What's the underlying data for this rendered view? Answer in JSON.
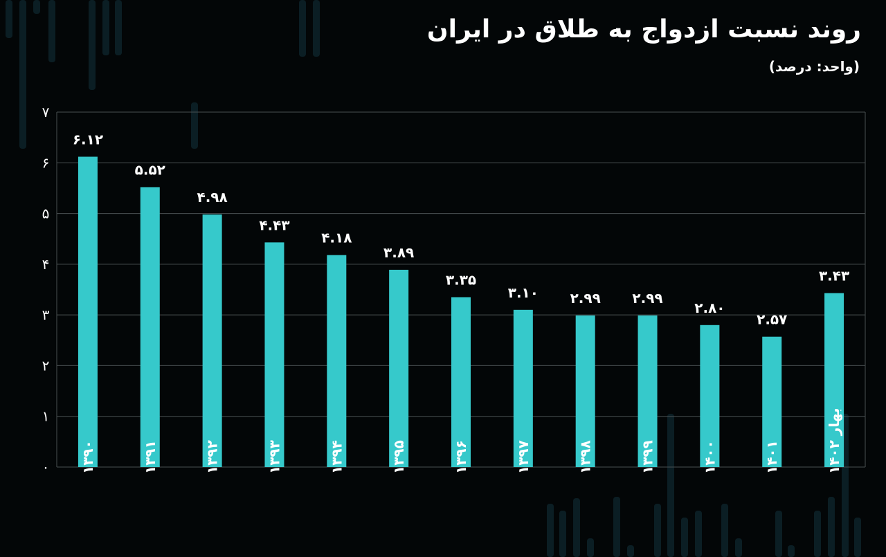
{
  "chart_data": {
    "type": "bar",
    "title": "روند نسبت ازدواج به طلاق در ایران",
    "subtitle": "(واحد: درصد)",
    "categories": [
      "۱۳۹۰",
      "۱۳۹۱",
      "۱۳۹۲",
      "۱۳۹۳",
      "۱۳۹۴",
      "۱۳۹۵",
      "۱۳۹۶",
      "۱۳۹۷",
      "۱۳۹۸",
      "۱۳۹۹",
      "۱۴۰۰",
      "۱۴۰۱",
      "بهار ۱۴۰۲"
    ],
    "values": [
      6.12,
      5.52,
      4.98,
      4.43,
      4.18,
      3.89,
      3.35,
      3.1,
      2.99,
      2.99,
      2.8,
      2.57,
      3.43
    ],
    "value_labels": [
      "۶.۱۲",
      "۵.۵۲",
      "۴.۹۸",
      "۴.۴۳",
      "۴.۱۸",
      "۳.۸۹",
      "۳.۳۵",
      "۳.۱۰",
      "۲.۹۹",
      "۲.۹۹",
      "۲.۸۰",
      "۲.۵۷",
      "۳.۴۳"
    ],
    "yticks": [
      0,
      1,
      2,
      3,
      4,
      5,
      6,
      7
    ],
    "ytick_labels": [
      "۰",
      "۱",
      "۲",
      "۳",
      "۴",
      "۵",
      "۶",
      "۷"
    ],
    "ylim": [
      0,
      7
    ],
    "xlabel": "",
    "ylabel": "",
    "grid": true,
    "bar_color": "#36c9cb",
    "background_color": "#030607",
    "grid_color": "#4a5052"
  }
}
